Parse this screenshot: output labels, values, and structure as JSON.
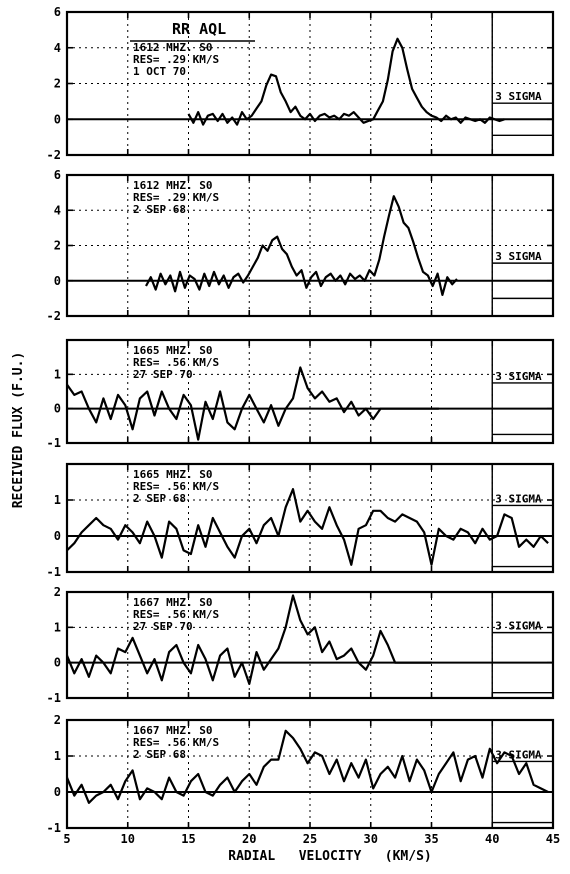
{
  "chart_data": {
    "type": "line",
    "ylabel": "RECEIVED   FLUX   (F.U.)",
    "xlabel": "RADIAL   VELOCITY   (KM/S)",
    "xlim": [
      5,
      45
    ],
    "xticks": [
      "5",
      "10",
      "15",
      "20",
      "25",
      "30",
      "35",
      "40",
      "45"
    ],
    "sigma_label": "3 SIGMA",
    "panels": [
      {
        "name": "panel-1612-1970",
        "title": "RR AQL",
        "freq": "1612 MHZ. S0",
        "res": "RES= .29 KM/S",
        "date": "1 OCT 70",
        "ylim": [
          -2,
          6
        ],
        "yticks": [
          "-2",
          "0",
          "2",
          "4",
          "6"
        ],
        "sigma": 0.9,
        "x": [
          15,
          15.4,
          15.8,
          16.2,
          16.6,
          17.0,
          17.4,
          17.8,
          18.2,
          18.6,
          19.0,
          19.4,
          19.8,
          20.2,
          20.6,
          21.0,
          21.4,
          21.8,
          22.2,
          22.6,
          23.0,
          23.4,
          23.8,
          24.2,
          24.6,
          25.0,
          25.4,
          25.8,
          26.2,
          26.6,
          27.0,
          27.4,
          27.8,
          28.2,
          28.6,
          29.0,
          29.4,
          29.8,
          30.2,
          30.6,
          31.0,
          31.4,
          31.8,
          32.2,
          32.6,
          33.0,
          33.4,
          33.8,
          34.2,
          34.6,
          35.0,
          35.4,
          35.8,
          36.2,
          36.6,
          37.0,
          37.4,
          37.8,
          38.2,
          38.6,
          39.0,
          39.4,
          39.8,
          40.2,
          40.6,
          41.0
        ],
        "y": [
          0.3,
          -0.2,
          0.4,
          -0.3,
          0.2,
          0.3,
          -0.1,
          0.3,
          -0.2,
          0.1,
          -0.3,
          0.4,
          0.0,
          0.2,
          0.6,
          1.0,
          1.9,
          2.5,
          2.4,
          1.5,
          1.0,
          0.4,
          0.7,
          0.2,
          0.0,
          0.3,
          -0.1,
          0.2,
          0.3,
          0.1,
          0.2,
          0.0,
          0.3,
          0.2,
          0.4,
          0.1,
          -0.2,
          -0.1,
          0.0,
          0.5,
          1.0,
          2.2,
          3.8,
          4.5,
          4.0,
          2.8,
          1.7,
          1.2,
          0.7,
          0.4,
          0.2,
          0.1,
          -0.1,
          0.2,
          0.0,
          0.1,
          -0.2,
          0.1,
          0.0,
          -0.1,
          0.0,
          -0.2,
          0.1,
          0.0,
          -0.1,
          0.0
        ]
      },
      {
        "name": "panel-1612-1968",
        "freq": "1612 MHZ. S0",
        "res": "RES= .29 KM/S",
        "date": "2 SEP 68",
        "ylim": [
          -2,
          6
        ],
        "yticks": [
          "-2",
          "0",
          "2",
          "4",
          "6"
        ],
        "sigma": 1.0,
        "x": [
          11.5,
          11.9,
          12.3,
          12.7,
          13.1,
          13.5,
          13.9,
          14.3,
          14.7,
          15.1,
          15.5,
          15.9,
          16.3,
          16.7,
          17.1,
          17.5,
          17.9,
          18.3,
          18.7,
          19.1,
          19.5,
          19.9,
          20.3,
          20.7,
          21.1,
          21.5,
          21.9,
          22.3,
          22.7,
          23.1,
          23.5,
          23.9,
          24.3,
          24.7,
          25.1,
          25.5,
          25.9,
          26.3,
          26.7,
          27.1,
          27.5,
          27.9,
          28.3,
          28.7,
          29.1,
          29.5,
          29.9,
          30.3,
          30.7,
          31.1,
          31.5,
          31.9,
          32.3,
          32.7,
          33.1,
          33.5,
          33.9,
          34.3,
          34.7,
          35.1,
          35.5,
          35.9,
          36.3,
          36.7,
          37.1
        ],
        "y": [
          -0.3,
          0.2,
          -0.5,
          0.4,
          -0.2,
          0.3,
          -0.6,
          0.5,
          -0.4,
          0.3,
          0.1,
          -0.5,
          0.4,
          -0.3,
          0.5,
          -0.2,
          0.3,
          -0.4,
          0.2,
          0.4,
          -0.1,
          0.3,
          0.8,
          1.3,
          2.0,
          1.7,
          2.3,
          2.5,
          1.8,
          1.5,
          0.8,
          0.3,
          0.6,
          -0.4,
          0.2,
          0.5,
          -0.3,
          0.2,
          0.4,
          0.0,
          0.3,
          -0.2,
          0.4,
          0.1,
          0.3,
          0.0,
          0.6,
          0.3,
          1.2,
          2.5,
          3.7,
          4.8,
          4.2,
          3.3,
          3.0,
          2.2,
          1.3,
          0.5,
          0.3,
          -0.3,
          0.4,
          -0.8,
          0.2,
          -0.2,
          0.1
        ]
      },
      {
        "name": "panel-1665-1970",
        "freq": "1665 MHZ. S0",
        "res": "RES= .56 KM/S",
        "date": "27 SEP 70",
        "ylim": [
          -1,
          2
        ],
        "yticks": [
          "-1",
          "0",
          "1"
        ],
        "sigma": 0.75,
        "x": [
          5.0,
          5.6,
          6.2,
          6.8,
          7.4,
          8.0,
          8.6,
          9.2,
          9.8,
          10.4,
          11.0,
          11.6,
          12.2,
          12.8,
          13.4,
          14.0,
          14.6,
          15.2,
          15.8,
          16.4,
          17.0,
          17.6,
          18.2,
          18.8,
          19.4,
          20.0,
          20.6,
          21.2,
          21.8,
          22.4,
          23.0,
          23.6,
          24.2,
          24.8,
          25.4,
          26.0,
          26.6,
          27.2,
          27.8,
          28.4,
          29.0,
          29.6,
          30.2,
          30.8,
          31.4,
          32.0,
          32.6,
          33.2,
          33.8,
          34.4,
          35.0,
          35.6
        ],
        "y": [
          0.7,
          0.4,
          0.5,
          0.0,
          -0.4,
          0.3,
          -0.3,
          0.4,
          0.1,
          -0.6,
          0.3,
          0.5,
          -0.2,
          0.5,
          0.0,
          -0.3,
          0.4,
          0.1,
          -0.9,
          0.2,
          -0.3,
          0.5,
          -0.4,
          -0.6,
          0.0,
          0.4,
          0.0,
          -0.4,
          0.1,
          -0.5,
          0.0,
          0.3,
          1.2,
          0.6,
          0.3,
          0.5,
          0.2,
          0.3,
          -0.1,
          0.2,
          -0.2,
          0.0,
          -0.3,
          0.0,
          0.0,
          0.0,
          0.0,
          0.0,
          0.0,
          0.0,
          0.0,
          0.0
        ]
      },
      {
        "name": "panel-1665-1968",
        "freq": "1665 MHZ. S0",
        "res": "RES= .56 KM/S",
        "date": "2 SEP 68",
        "ylim": [
          -1,
          2
        ],
        "yticks": [
          "-1",
          "0",
          "1"
        ],
        "sigma": 0.85,
        "x": [
          5.0,
          5.6,
          6.2,
          6.8,
          7.4,
          8.0,
          8.6,
          9.2,
          9.8,
          10.4,
          11.0,
          11.6,
          12.2,
          12.8,
          13.4,
          14.0,
          14.6,
          15.2,
          15.8,
          16.4,
          17.0,
          17.6,
          18.2,
          18.8,
          19.4,
          20.0,
          20.6,
          21.2,
          21.8,
          22.4,
          23.0,
          23.6,
          24.2,
          24.8,
          25.4,
          26.0,
          26.6,
          27.2,
          27.8,
          28.4,
          29.0,
          29.6,
          30.2,
          30.8,
          31.4,
          32.0,
          32.6,
          33.2,
          33.8,
          34.4,
          35.0,
          35.6,
          36.2,
          36.8,
          37.4,
          38.0,
          38.6,
          39.2,
          39.8,
          40.4,
          41.0,
          41.6,
          42.2,
          42.8,
          43.4,
          44.0,
          44.6
        ],
        "y": [
          -0.4,
          -0.2,
          0.1,
          0.3,
          0.5,
          0.3,
          0.2,
          -0.1,
          0.3,
          0.1,
          -0.2,
          0.4,
          0.0,
          -0.6,
          0.4,
          0.2,
          -0.4,
          -0.5,
          0.3,
          -0.3,
          0.5,
          0.1,
          -0.3,
          -0.6,
          0.0,
          0.2,
          -0.2,
          0.3,
          0.5,
          0.0,
          0.8,
          1.3,
          0.4,
          0.7,
          0.4,
          0.2,
          0.8,
          0.3,
          -0.1,
          -0.8,
          0.2,
          0.3,
          0.7,
          0.7,
          0.5,
          0.4,
          0.6,
          0.5,
          0.4,
          0.1,
          -0.8,
          0.2,
          0.0,
          -0.1,
          0.2,
          0.1,
          -0.2,
          0.2,
          -0.1,
          0.0,
          0.6,
          0.5,
          -0.3,
          -0.1,
          -0.3,
          0.0,
          -0.2
        ]
      },
      {
        "name": "panel-1667-1970",
        "freq": "1667 MHZ. S0",
        "res": "RES= .56 KM/S",
        "date": "27 SEP 70",
        "ylim": [
          -1,
          2
        ],
        "yticks": [
          "-1",
          "0",
          "1",
          "2"
        ],
        "sigma": 0.85,
        "x": [
          5.0,
          5.6,
          6.2,
          6.8,
          7.4,
          8.0,
          8.6,
          9.2,
          9.8,
          10.4,
          11.0,
          11.6,
          12.2,
          12.8,
          13.4,
          14.0,
          14.6,
          15.2,
          15.8,
          16.4,
          17.0,
          17.6,
          18.2,
          18.8,
          19.4,
          20.0,
          20.6,
          21.2,
          21.8,
          22.4,
          23.0,
          23.6,
          24.2,
          24.8,
          25.4,
          26.0,
          26.6,
          27.2,
          27.8,
          28.4,
          29.0,
          29.6,
          30.2,
          30.8,
          31.4,
          32.0,
          32.6,
          33.2,
          33.8,
          34.4,
          35.0
        ],
        "y": [
          0.2,
          -0.3,
          0.1,
          -0.4,
          0.2,
          0.0,
          -0.3,
          0.4,
          0.3,
          0.7,
          0.2,
          -0.3,
          0.1,
          -0.5,
          0.3,
          0.5,
          0.0,
          -0.3,
          0.5,
          0.1,
          -0.5,
          0.2,
          0.4,
          -0.4,
          0.0,
          -0.6,
          0.3,
          -0.2,
          0.1,
          0.4,
          1.0,
          1.9,
          1.2,
          0.8,
          1.0,
          0.3,
          0.6,
          0.1,
          0.2,
          0.4,
          0.0,
          -0.2,
          0.2,
          0.9,
          0.5,
          0.0,
          0.0,
          0.0,
          0.0,
          0.0,
          0.0
        ]
      },
      {
        "name": "panel-1667-1968",
        "freq": "1667 MHZ. S0",
        "res": "RES= .56 KM/S",
        "date": "2 SEP 68",
        "ylim": [
          -1,
          2
        ],
        "yticks": [
          "-1",
          "0",
          "1",
          "2"
        ],
        "sigma": 0.85,
        "x": [
          5.0,
          5.6,
          6.2,
          6.8,
          7.4,
          8.0,
          8.6,
          9.2,
          9.8,
          10.4,
          11.0,
          11.6,
          12.2,
          12.8,
          13.4,
          14.0,
          14.6,
          15.2,
          15.8,
          16.4,
          17.0,
          17.6,
          18.2,
          18.8,
          19.4,
          20.0,
          20.6,
          21.2,
          21.8,
          22.4,
          23.0,
          23.6,
          24.2,
          24.8,
          25.4,
          26.0,
          26.6,
          27.2,
          27.8,
          28.4,
          29.0,
          29.6,
          30.2,
          30.8,
          31.4,
          32.0,
          32.6,
          33.2,
          33.8,
          34.4,
          35.0,
          35.6,
          36.2,
          36.8,
          37.4,
          38.0,
          38.6,
          39.2,
          39.8,
          40.4,
          41.0,
          41.6,
          42.2,
          42.8,
          43.4,
          44.0,
          44.6
        ],
        "y": [
          0.4,
          -0.1,
          0.2,
          -0.3,
          -0.1,
          0.0,
          0.2,
          -0.2,
          0.3,
          0.6,
          -0.2,
          0.1,
          0.0,
          -0.2,
          0.4,
          0.0,
          -0.1,
          0.3,
          0.5,
          0.0,
          -0.1,
          0.2,
          0.4,
          0.0,
          0.3,
          0.5,
          0.2,
          0.7,
          0.9,
          0.9,
          1.7,
          1.5,
          1.2,
          0.8,
          1.1,
          1.0,
          0.5,
          0.9,
          0.3,
          0.8,
          0.4,
          0.9,
          0.1,
          0.5,
          0.7,
          0.4,
          1.0,
          0.3,
          0.9,
          0.6,
          0.0,
          0.5,
          0.8,
          1.1,
          0.3,
          0.9,
          1.0,
          0.4,
          1.2,
          0.8,
          1.1,
          1.0,
          0.5,
          0.8,
          0.2,
          0.1,
          0.0
        ]
      }
    ]
  }
}
